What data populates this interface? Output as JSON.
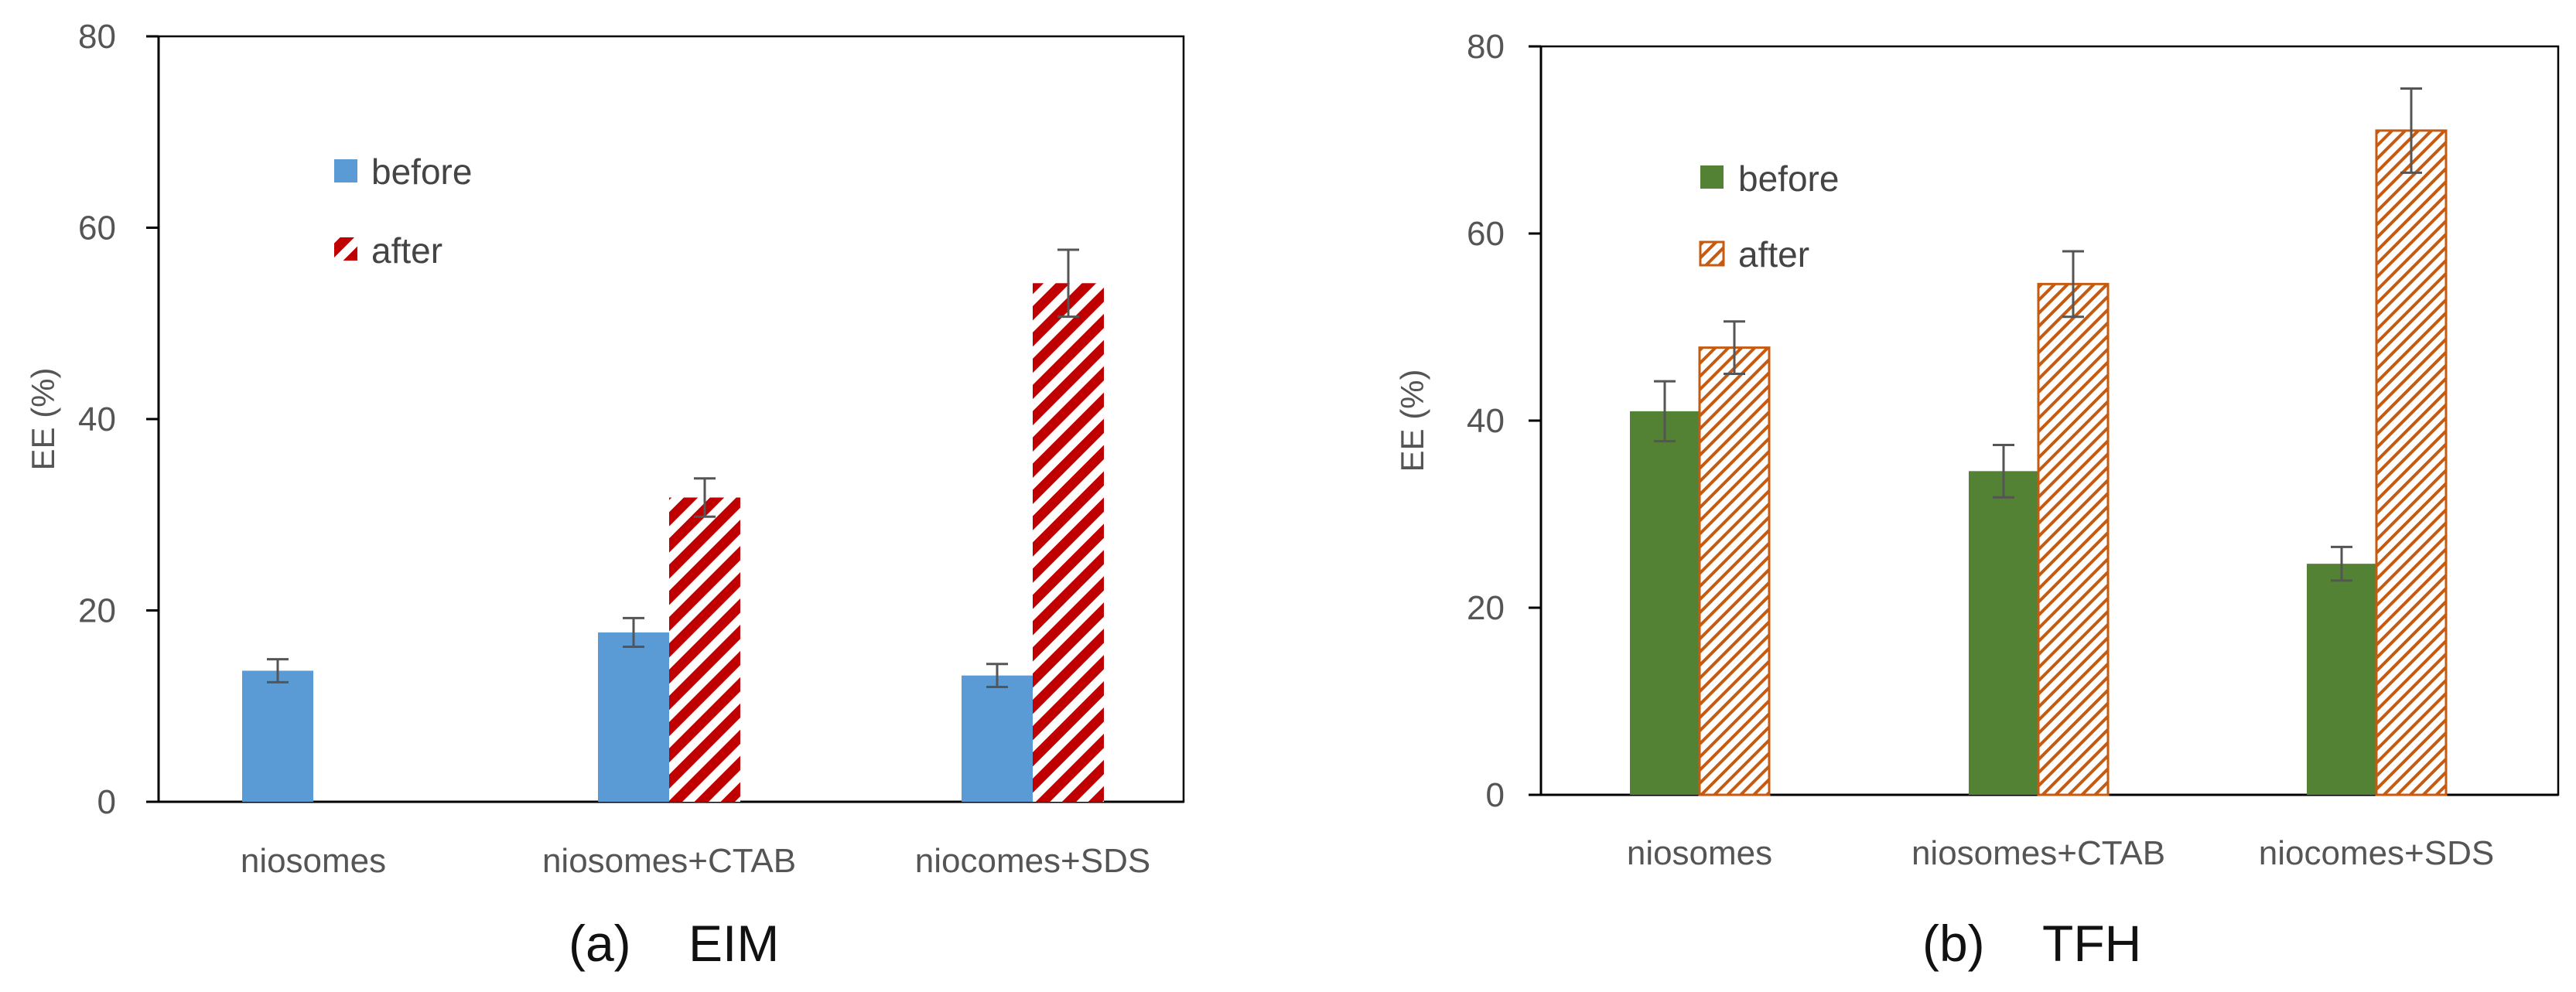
{
  "chart_data": [
    {
      "type": "bar",
      "panel_label": "(a)",
      "title": "EIM",
      "categories": [
        "niosomes",
        "niosomes+CTAB",
        "niocomes+SDS"
      ],
      "ylabel": "EE (%)",
      "xlabel": "",
      "ylim": [
        0,
        80
      ],
      "yticks": [
        0,
        20,
        40,
        60,
        80
      ],
      "legend_position": "upper-left-inside",
      "grid": false,
      "series": [
        {
          "name": "before",
          "values": [
            13.7,
            17.7,
            13.2
          ],
          "errors": [
            1.2,
            1.5,
            1.2
          ],
          "fill": "solid",
          "color": "#5B9BD5"
        },
        {
          "name": "after",
          "values": [
            null,
            31.8,
            54.2
          ],
          "errors": [
            null,
            2.0,
            3.5
          ],
          "fill": "hatch",
          "color": "#C00000"
        }
      ]
    },
    {
      "type": "bar",
      "panel_label": "(b)",
      "title": "TFH",
      "categories": [
        "niosomes",
        "niosomes+CTAB",
        "niocomes+SDS"
      ],
      "ylabel": "EE (%)",
      "xlabel": "",
      "ylim": [
        0,
        80
      ],
      "yticks": [
        0,
        20,
        40,
        60,
        80
      ],
      "legend_position": "upper-left-inside",
      "grid": false,
      "series": [
        {
          "name": "before",
          "values": [
            41.0,
            34.6,
            24.7
          ],
          "errors": [
            3.2,
            2.8,
            1.8
          ],
          "fill": "solid",
          "color": "#548235"
        },
        {
          "name": "after",
          "values": [
            47.8,
            54.6,
            71.0
          ],
          "errors": [
            2.8,
            3.5,
            4.5
          ],
          "fill": "hatch",
          "color": "#C55A11"
        }
      ]
    }
  ]
}
